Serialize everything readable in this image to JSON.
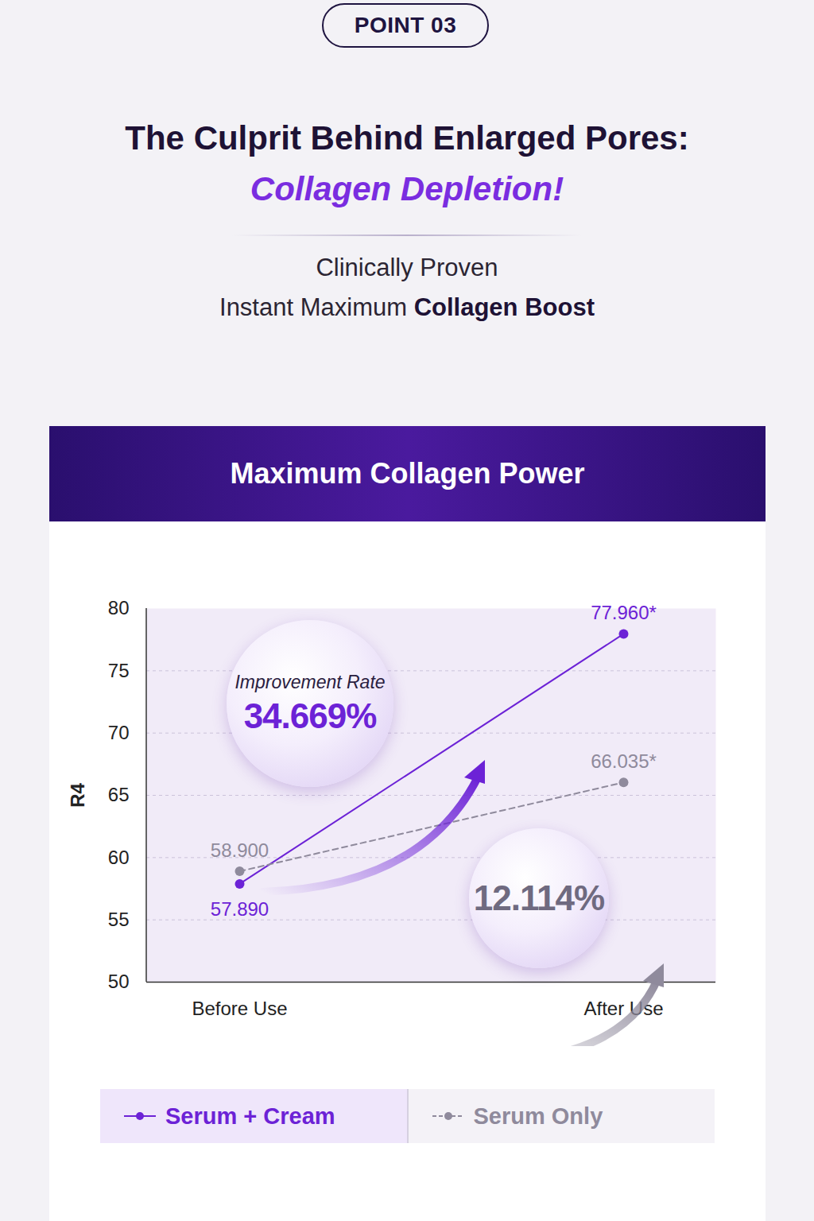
{
  "header": {
    "badge": "POINT 03",
    "title": "The Culprit Behind Enlarged Pores:",
    "title_highlight": "Collagen Depletion!",
    "subtitle": "Clinically Proven",
    "tagline": "Instant Maximum",
    "tagline_bold": "Collagen Boost"
  },
  "chart_data": {
    "type": "line",
    "title": "Maximum Collagen Power",
    "categories": [
      "Before Use",
      "After Use"
    ],
    "y_label": "R4",
    "ylim": [
      50,
      80
    ],
    "yticks": [
      50,
      55,
      60,
      65,
      70,
      75,
      80
    ],
    "grid": true,
    "legend": "bottom",
    "data_labels": true,
    "series": [
      {
        "name": "Serum + Cream",
        "color": "#6c22d6",
        "marker": "circle",
        "line_style": "solid",
        "values": [
          57.89,
          77.96
        ],
        "value_labels": [
          "57.890",
          "77.960*"
        ]
      },
      {
        "name": "Serum Only",
        "color": "#8f8a9c",
        "marker": "circle",
        "line_style": "dashed",
        "values": [
          58.9,
          66.035
        ],
        "value_labels": [
          "58.900",
          "66.035*"
        ]
      }
    ],
    "annotations": [
      {
        "label": "Improvement Rate",
        "text": "34.669%",
        "series": "Serum + Cream"
      },
      {
        "text": "12.114%",
        "series": "Serum Only"
      }
    ]
  }
}
